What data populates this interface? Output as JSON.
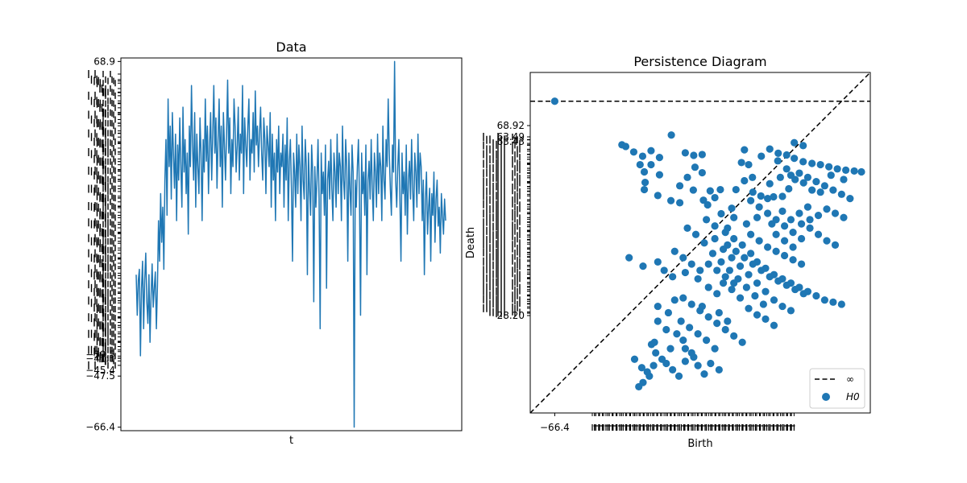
{
  "chart_data": [
    {
      "type": "line",
      "title": "Data",
      "xlabel": "t",
      "ylabel": "",
      "ylim": [
        -67.7,
        70.2
      ],
      "visible_y_ticks": [
        "68.9",
        "-47.5",
        "-66.4"
      ],
      "legible_dense_y_ticks": [
        "-45.4",
        "-41.1",
        "-39.5"
      ],
      "x_ticks_shown": false,
      "series": [
        {
          "color": "#1f77b4",
          "values": [
            -10,
            -25,
            -12,
            -8,
            -40,
            -15,
            -5,
            -30,
            -12,
            -2,
            -20,
            -28,
            -10,
            -35,
            -18,
            -6,
            -22,
            -15,
            -9,
            -30,
            -14,
            10,
            -5,
            20,
            2,
            15,
            -8,
            25,
            40,
            12,
            55,
            30,
            45,
            18,
            50,
            35,
            22,
            42,
            10,
            38,
            25,
            48,
            30,
            15,
            52,
            28,
            40,
            20,
            35,
            5,
            45,
            30,
            60,
            38,
            25,
            50,
            15,
            42,
            30,
            20,
            48,
            35,
            10,
            40,
            28,
            55,
            32,
            45,
            20,
            38,
            50,
            25,
            42,
            60,
            35,
            48,
            22,
            40,
            55,
            30,
            45,
            15,
            50,
            38,
            25,
            42,
            62,
            35,
            48,
            20,
            40,
            30,
            55,
            45,
            28,
            38,
            52,
            25,
            42,
            35,
            60,
            20,
            48,
            38,
            30,
            45,
            55,
            25,
            40,
            35,
            50,
            28,
            58,
            38,
            45,
            30,
            42,
            52,
            35,
            25,
            48,
            40,
            20,
            45,
            38,
            30,
            50,
            15,
            42,
            25,
            35,
            10,
            40,
            28,
            45,
            20,
            35,
            30,
            42,
            15,
            38,
            25,
            48,
            10,
            32,
            40,
            22,
            -5,
            35,
            28,
            15,
            42,
            20,
            38,
            30,
            10,
            45,
            25,
            18,
            40,
            30,
            -10,
            35,
            22,
            12,
            38,
            28,
            -20,
            30,
            15,
            25,
            40,
            18,
            -30,
            35,
            20,
            28,
            12,
            38,
            -15,
            25,
            32,
            18,
            40,
            22,
            10,
            35,
            28,
            15,
            42,
            20,
            35,
            30,
            10,
            45,
            25,
            18,
            40,
            30,
            -5,
            35,
            22,
            12,
            38,
            28,
            -66.4,
            25,
            15,
            30,
            40,
            18,
            -25,
            35,
            20,
            28,
            12,
            38,
            -10,
            25,
            32,
            18,
            40,
            22,
            10,
            35,
            28,
            15,
            42,
            20,
            35,
            30,
            10,
            45,
            25,
            18,
            40,
            30,
            55,
            35,
            22,
            12,
            38,
            28,
            68.9,
            25,
            15,
            30,
            40,
            18,
            -5,
            35,
            20,
            28,
            12,
            38,
            5,
            25,
            32,
            18,
            40,
            22,
            10,
            35,
            28,
            15,
            42,
            20,
            35,
            30,
            10,
            25,
            -10,
            18,
            28,
            5,
            15,
            22,
            -5,
            20,
            12,
            28,
            2,
            18,
            25,
            8,
            15,
            -2,
            20,
            12,
            5,
            18,
            10
          ]
        }
      ]
    },
    {
      "type": "scatter",
      "title": "Persistence Diagram",
      "xlabel": "Birth",
      "ylabel": "Death",
      "xlim": [
        -72.2,
        8.3
      ],
      "ylim": [
        -72.2,
        8.3
      ],
      "visible_x_ticks": [
        "-66.4"
      ],
      "visible_y_ticks": [
        "68.92",
        "28.20"
      ],
      "legible_dense_y_ticks": [
        "63.49",
        "63.43"
      ],
      "legend_position": "lower-right",
      "legend": [
        {
          "label": "∞",
          "style": "dashed-line",
          "color": "#000000"
        },
        {
          "label": "H0",
          "style": "marker",
          "color": "#1f77b4"
        }
      ],
      "infinity_line_y": 1.5,
      "points": [
        [
          -66.4,
          1.5
        ],
        [
          -50.5,
          -8.8
        ],
        [
          -49.6,
          -9.2
        ],
        [
          -47.7,
          -10.5
        ],
        [
          -45.6,
          -11.5
        ],
        [
          -43.6,
          -10.2
        ],
        [
          -41.6,
          -11.8
        ],
        [
          -46.2,
          -13.5
        ],
        [
          -45.2,
          -15.2
        ],
        [
          -43.6,
          -13.5
        ],
        [
          -41.6,
          -15.9
        ],
        [
          -45.0,
          -17.7
        ],
        [
          -45.2,
          -19.4
        ],
        [
          -42.0,
          -20.8
        ],
        [
          -38.9,
          -22.0
        ],
        [
          -36.8,
          -22.5
        ],
        [
          -38.8,
          -6.5
        ],
        [
          -35.5,
          -10.7
        ],
        [
          -33.5,
          -11.3
        ],
        [
          -31.5,
          -11.1
        ],
        [
          -33.2,
          -14.1
        ],
        [
          -31.5,
          -15.4
        ],
        [
          -35.0,
          -16.5
        ],
        [
          -36.8,
          -18.5
        ],
        [
          -33.6,
          -19.5
        ],
        [
          -29.6,
          -19.7
        ],
        [
          -27.2,
          -19.4
        ],
        [
          -28.5,
          -21.3
        ],
        [
          -31.2,
          -21.9
        ],
        [
          -30.2,
          -23.0
        ],
        [
          -21.5,
          -10.0
        ],
        [
          -22.2,
          -13.0
        ],
        [
          -20.5,
          -13.5
        ],
        [
          -19.6,
          -16.5
        ],
        [
          -21.5,
          -17.3
        ],
        [
          -23.5,
          -19.4
        ],
        [
          -19.5,
          -20.0
        ],
        [
          -17.6,
          -20.9
        ],
        [
          -16.0,
          -21.5
        ],
        [
          -14.6,
          -21.1
        ],
        [
          -12.5,
          -21.0
        ],
        [
          -15.5,
          -9.8
        ],
        [
          -13.6,
          -12.6
        ],
        [
          -11.5,
          -11.2
        ],
        [
          -9.7,
          -12.0
        ],
        [
          -7.6,
          -12.8
        ],
        [
          -5.5,
          -13.2
        ],
        [
          -3.5,
          -13.5
        ],
        [
          -1.5,
          -14.0
        ],
        [
          0.5,
          -14.5
        ],
        [
          2.5,
          -14.8
        ],
        [
          4.5,
          -15.0
        ],
        [
          6.2,
          -15.2
        ],
        [
          -9.7,
          -8.3
        ],
        [
          -7.6,
          -9.0
        ],
        [
          -13.5,
          -10.8
        ],
        [
          -17.5,
          -11.5
        ],
        [
          -11.5,
          -14.5
        ],
        [
          -13.0,
          -16.5
        ],
        [
          -9.5,
          -17.0
        ],
        [
          -7.5,
          -17.8
        ],
        [
          -15.5,
          -18.0
        ],
        [
          -11.0,
          -19.2
        ],
        [
          -5.5,
          -19.5
        ],
        [
          -3.5,
          -20.0
        ],
        [
          -24.5,
          -23.8
        ],
        [
          -27.0,
          -25.1
        ],
        [
          -24.0,
          -26.0
        ],
        [
          -21.0,
          -27.5
        ],
        [
          -25.5,
          -28.5
        ],
        [
          -18.5,
          -26.0
        ],
        [
          -15.0,
          -27.5
        ],
        [
          -12.5,
          -24.5
        ],
        [
          -10.5,
          -26.5
        ],
        [
          -8.5,
          -25.0
        ],
        [
          -6.5,
          -23.5
        ],
        [
          -48.8,
          -35.5
        ],
        [
          -45.5,
          -37.5
        ],
        [
          -42.0,
          -36.5
        ],
        [
          -40.5,
          -38.5
        ],
        [
          -38.5,
          -40.0
        ],
        [
          -35.5,
          -39.0
        ],
        [
          -32.5,
          -40.5
        ],
        [
          -30.0,
          -42.5
        ],
        [
          -28.0,
          -44.0
        ],
        [
          -26.5,
          -41.5
        ],
        [
          -24.5,
          -43.0
        ],
        [
          -22.5,
          -45.0
        ],
        [
          -20.5,
          -47.5
        ],
        [
          -18.5,
          -49.0
        ],
        [
          -16.5,
          -50.0
        ],
        [
          -14.5,
          -51.5
        ],
        [
          -42.0,
          -47.0
        ],
        [
          -39.5,
          -48.5
        ],
        [
          -38.0,
          -45.5
        ],
        [
          -36.5,
          -50.5
        ],
        [
          -34.5,
          -52.0
        ],
        [
          -32.5,
          -53.5
        ],
        [
          -30.5,
          -55.0
        ],
        [
          -28.5,
          -57.0
        ],
        [
          -31.5,
          -47.0
        ],
        [
          -27.5,
          -48.5
        ],
        [
          -25.5,
          -50.5
        ],
        [
          -43.5,
          -56.0
        ],
        [
          -42.5,
          -58.0
        ],
        [
          -41.0,
          -59.5
        ],
        [
          -42.0,
          -50.5
        ],
        [
          -40.0,
          -52.5
        ],
        [
          -35.5,
          -57.0
        ],
        [
          -33.5,
          -59.0
        ],
        [
          -32.5,
          -61.0
        ],
        [
          -31.0,
          -63.0
        ],
        [
          -29.5,
          -60.5
        ],
        [
          -27.5,
          -62.0
        ],
        [
          -47.5,
          -59.5
        ],
        [
          -45.8,
          -61.5
        ],
        [
          -42.8,
          -55.5
        ],
        [
          -44.0,
          -63.5
        ],
        [
          -45.5,
          -65.0
        ],
        [
          -46.5,
          -66.0
        ],
        [
          -20.0,
          -34.5
        ],
        [
          -18.5,
          -36.5
        ],
        [
          -16.5,
          -38.0
        ],
        [
          -14.5,
          -39.5
        ],
        [
          -12.5,
          -40.5
        ],
        [
          -10.5,
          -41.5
        ],
        [
          -8.5,
          -42.5
        ],
        [
          -6.5,
          -43.5
        ],
        [
          -4.5,
          -44.5
        ],
        [
          -2.5,
          -45.5
        ],
        [
          -0.5,
          -46.0
        ],
        [
          1.5,
          -46.5
        ],
        [
          -25.5,
          -32.5
        ],
        [
          -23.5,
          -34.0
        ],
        [
          -21.5,
          -35.5
        ],
        [
          -19.5,
          -37.0
        ],
        [
          -17.5,
          -38.5
        ],
        [
          -15.5,
          -40.0
        ],
        [
          -13.5,
          -41.0
        ],
        [
          -11.5,
          -42.0
        ],
        [
          -9.5,
          -43.0
        ],
        [
          -7.5,
          -44.0
        ],
        [
          -28.5,
          -31.0
        ],
        [
          -26.5,
          -33.5
        ],
        [
          -24.5,
          -35.5
        ],
        [
          -22.5,
          -37.5
        ],
        [
          -20.5,
          -39.5
        ],
        [
          -18.5,
          -41.5
        ],
        [
          -16.5,
          -43.5
        ],
        [
          -14.5,
          -45.5
        ],
        [
          -12.5,
          -47.0
        ],
        [
          -10.5,
          -48.0
        ],
        [
          -35.0,
          -28.5
        ],
        [
          -33.0,
          -30.0
        ],
        [
          -31.0,
          -32.0
        ],
        [
          -29.0,
          -34.5
        ],
        [
          -27.0,
          -36.5
        ],
        [
          -25.0,
          -38.5
        ],
        [
          -23.0,
          -40.5
        ],
        [
          -21.0,
          -42.5
        ],
        [
          -19.0,
          -44.5
        ],
        [
          -17.0,
          -46.5
        ],
        [
          -30.5,
          -26.5
        ],
        [
          -28.5,
          -28.0
        ],
        [
          -26.0,
          -29.5
        ],
        [
          -24.0,
          -31.0
        ],
        [
          -22.0,
          -32.5
        ],
        [
          -20.0,
          -30.0
        ],
        [
          -18.0,
          -31.5
        ],
        [
          -16.0,
          -33.0
        ],
        [
          -14.0,
          -34.0
        ],
        [
          -12.0,
          -35.0
        ],
        [
          -10.0,
          -36.0
        ],
        [
          -8.0,
          -37.0
        ],
        [
          -6.0,
          -28.5
        ],
        [
          -4.0,
          -30.0
        ],
        [
          -2.0,
          -31.5
        ],
        [
          0.0,
          -32.5
        ],
        [
          -8.0,
          -31.0
        ],
        [
          -10.0,
          -29.5
        ],
        [
          -12.0,
          -28.0
        ],
        [
          -14.0,
          -26.5
        ],
        [
          -16.0,
          -25.0
        ],
        [
          -18.0,
          -23.5
        ],
        [
          -20.0,
          -22.0
        ],
        [
          -4.5,
          -17.5
        ],
        [
          -2.5,
          -18.5
        ],
        [
          -0.5,
          -19.5
        ],
        [
          1.5,
          -20.5
        ],
        [
          3.5,
          -21.5
        ],
        [
          -6.5,
          -16.5
        ],
        [
          -8.5,
          -15.5
        ],
        [
          -10.5,
          -16.0
        ],
        [
          -1.0,
          -16.0
        ],
        [
          2.0,
          -17.0
        ],
        [
          -36.0,
          -45.0
        ],
        [
          -34.0,
          -46.5
        ],
        [
          -32.0,
          -48.0
        ],
        [
          -30.0,
          -49.5
        ],
        [
          -28.0,
          -51.0
        ],
        [
          -26.0,
          -52.5
        ],
        [
          -24.0,
          -54.0
        ],
        [
          -22.0,
          -55.5
        ],
        [
          -37.5,
          -53.5
        ],
        [
          -36.0,
          -55.0
        ],
        [
          -40.0,
          -60.5
        ],
        [
          -38.5,
          -62.0
        ],
        [
          -37.0,
          -63.5
        ],
        [
          -35.5,
          -60.0
        ],
        [
          -34.0,
          -58.0
        ],
        [
          -44.5,
          -62.5
        ],
        [
          -43.0,
          -61.0
        ],
        [
          -39.0,
          -57.0
        ],
        [
          -38.0,
          -34.0
        ],
        [
          -36.0,
          -35.5
        ],
        [
          -34.0,
          -37.0
        ],
        [
          -32.0,
          -38.5
        ],
        [
          -30.0,
          -37.0
        ],
        [
          -28.0,
          -38.5
        ],
        [
          -26.0,
          -40.0
        ],
        [
          -24.0,
          -41.5
        ],
        [
          -2.0,
          -24.0
        ],
        [
          0.0,
          -25.0
        ],
        [
          2.0,
          -26.0
        ],
        [
          -4.0,
          -25.5
        ],
        [
          -6.0,
          -26.5
        ],
        [
          -8.0,
          -27.5
        ],
        [
          -12.0,
          -31.5
        ],
        [
          -14.0,
          -30.0
        ],
        [
          -10.0,
          -33.0
        ]
      ]
    }
  ]
}
